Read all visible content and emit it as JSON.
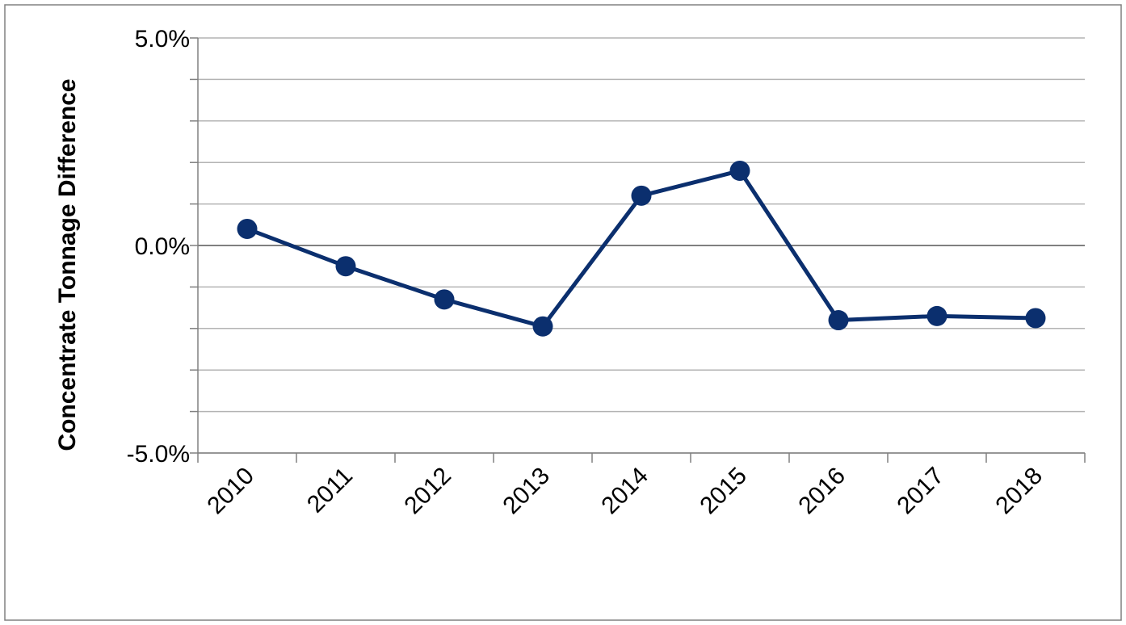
{
  "chart_data": {
    "type": "line",
    "title": "",
    "xlabel": "",
    "ylabel": "Concentrate Tonnage Difference",
    "categories": [
      "2010",
      "2011",
      "2012",
      "2013",
      "2014",
      "2015",
      "2016",
      "2017",
      "2018"
    ],
    "series": [
      {
        "values": [
          0.4,
          -0.5,
          -1.3,
          -1.95,
          1.2,
          1.8,
          -1.8,
          -1.7,
          -1.75
        ]
      }
    ],
    "ylim": [
      -5.0,
      5.0
    ],
    "y_ticks": [
      {
        "value": 5.0,
        "label": "5.0%"
      },
      {
        "value": 0.0,
        "label": "0.0%"
      },
      {
        "value": -5.0,
        "label": "-5.0%"
      }
    ],
    "y_gridline_step": 1.0,
    "grid": true,
    "legend": "none",
    "colors": {
      "series_line": "#0b2f6e",
      "gridline": "#b3b3b3",
      "axis": "#808080",
      "frame": "#808080"
    }
  }
}
